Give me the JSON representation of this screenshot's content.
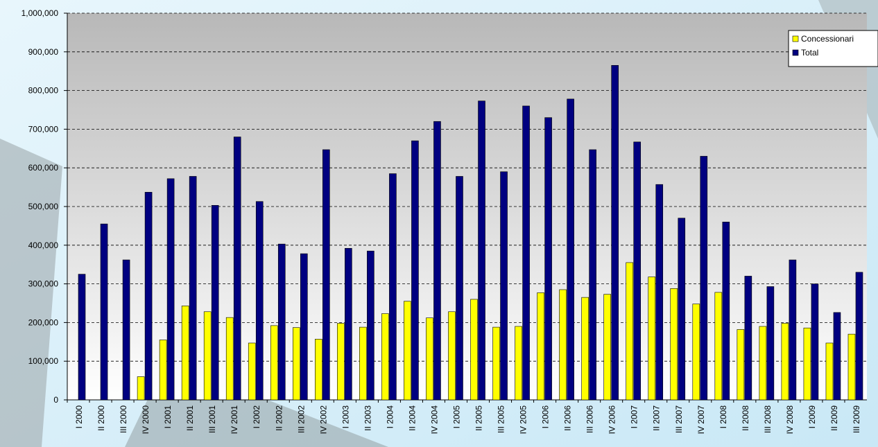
{
  "chart_data": {
    "type": "bar",
    "categories": [
      "I 2000",
      "II 2000",
      "III 2000",
      "IV 2000",
      "I 2001",
      "II 2001",
      "III 2001",
      "IV 2001",
      "I 2002",
      "II 2002",
      "III 2002",
      "IV 2002",
      "I 2003",
      "II 2003",
      "I 2004",
      "II 2004",
      "IV 2004",
      "I 2005",
      "II 2005",
      "III 2005",
      "IV 2005",
      "I 2006",
      "II 2006",
      "III 2006",
      "IV 2006",
      "I 2007",
      "II 2007",
      "III 2007",
      "IV 2007",
      "I 2008",
      "II 2008",
      "III 2008",
      "IV 2008",
      "I 2009",
      "II 2009",
      "III 2009"
    ],
    "series": [
      {
        "name": "Concessionari",
        "color": "#ffff00",
        "values": [
          null,
          null,
          null,
          60000,
          155000,
          243000,
          228000,
          213000,
          147000,
          192000,
          187000,
          157000,
          198000,
          188000,
          223000,
          255000,
          212000,
          228000,
          260000,
          188000,
          190000,
          277000,
          285000,
          265000,
          273000,
          355000,
          318000,
          288000,
          248000,
          278000,
          182000,
          190000,
          198000,
          186000,
          147000,
          170000
        ]
      },
      {
        "name": "Total",
        "color": "#000080",
        "values": [
          325000,
          455000,
          362000,
          537000,
          572000,
          578000,
          503000,
          680000,
          513000,
          403000,
          378000,
          647000,
          392000,
          385000,
          585000,
          670000,
          720000,
          578000,
          773000,
          590000,
          760000,
          730000,
          778000,
          647000,
          865000,
          667000,
          557000,
          470000,
          630000,
          460000,
          320000,
          293000,
          362000,
          300000,
          226000,
          330000
        ]
      }
    ],
    "ylim": [
      0,
      1000000
    ],
    "yticks": [
      0,
      {
        "value": 100000,
        "label": "100,000"
      },
      {
        "value": 200000,
        "label": "200,000"
      },
      {
        "value": 300000,
        "label": "300,000"
      },
      {
        "value": 400000,
        "label": "400,000"
      },
      {
        "value": 500000,
        "label": "500,000"
      },
      {
        "value": 600000,
        "label": "600,000"
      },
      {
        "value": 700000,
        "label": "700,000"
      },
      {
        "value": 800000,
        "label": "800,000"
      },
      {
        "value": 900000,
        "label": "900,000"
      },
      {
        "value": 1000000,
        "label": "1,000,000"
      }
    ],
    "grid": true,
    "legend": "upper right"
  }
}
